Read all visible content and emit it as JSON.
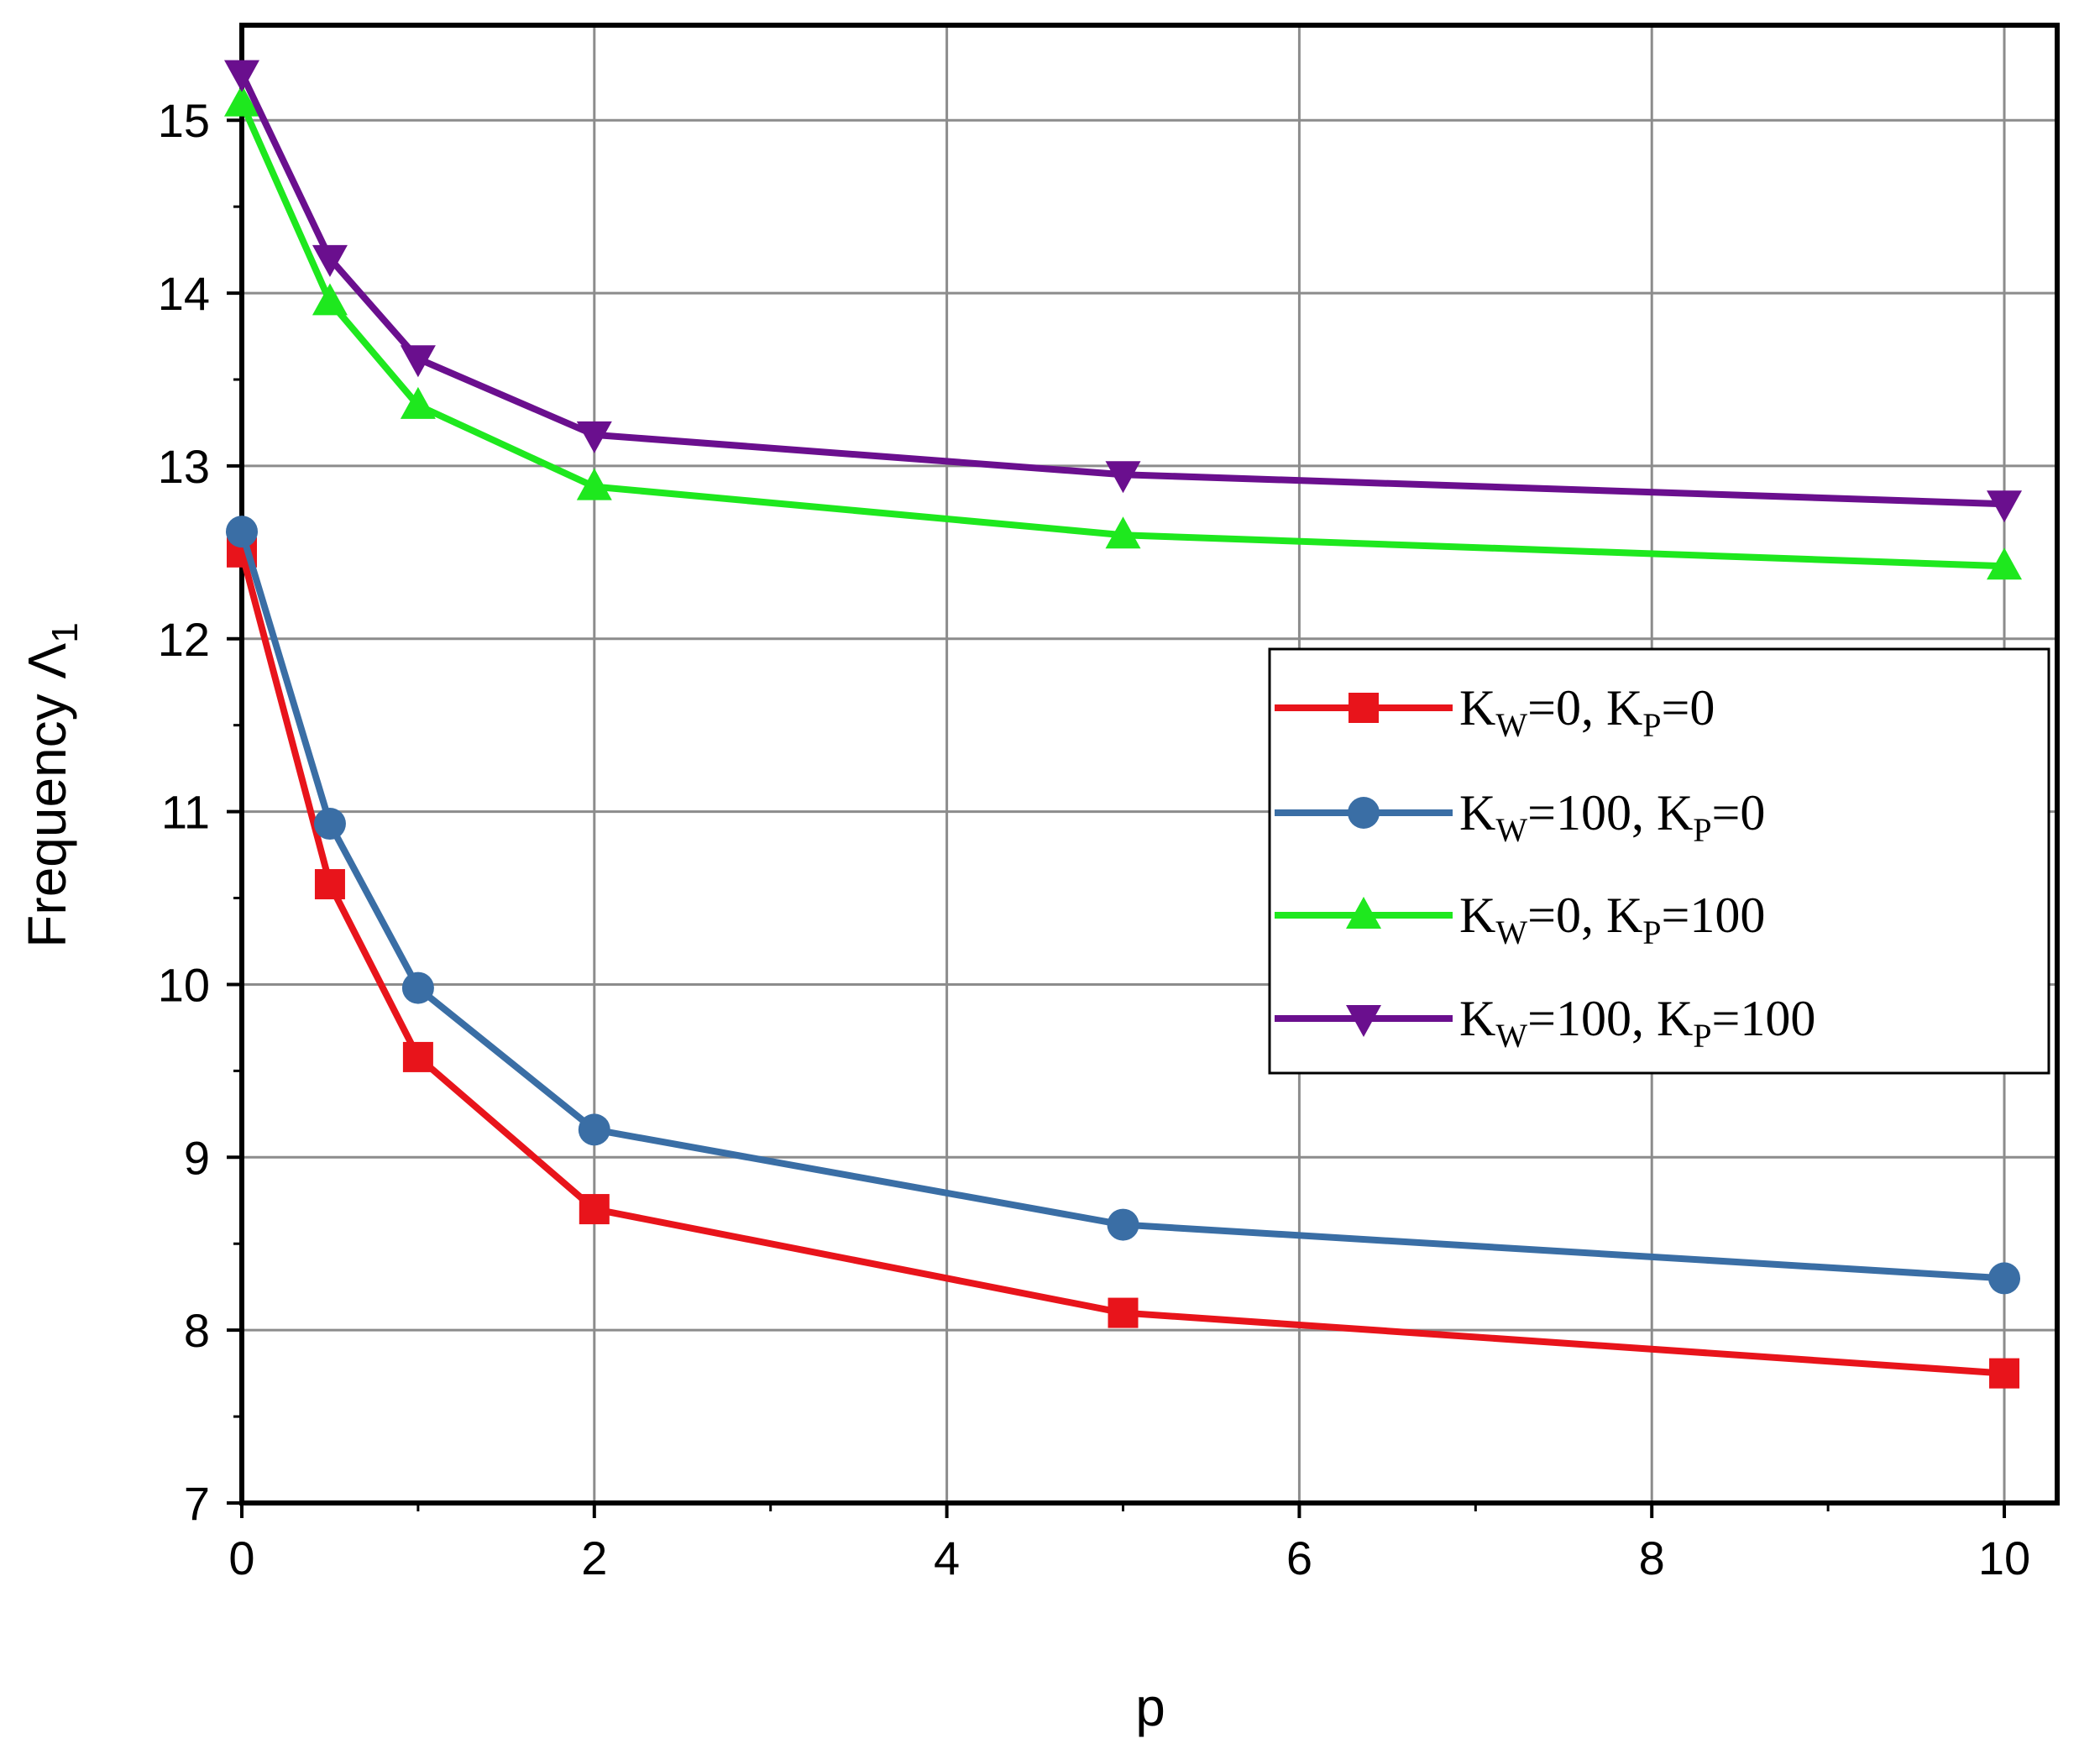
{
  "chart_data": {
    "type": "line",
    "title": "",
    "xlabel": "p",
    "ylabel": "Frequency Λ",
    "ylabel_subscript": "1",
    "x": [
      0,
      0.5,
      1,
      2,
      5,
      10
    ],
    "xlim": [
      0,
      10.3
    ],
    "ylim": [
      7,
      15.55
    ],
    "xticks": [
      0,
      2,
      4,
      6,
      8,
      10
    ],
    "yticks": [
      7,
      8,
      9,
      10,
      11,
      12,
      13,
      14,
      15
    ],
    "grid": true,
    "legend_position": "right",
    "series": [
      {
        "name": "KW=0, KP=0",
        "color": "#e8141b",
        "marker": "square",
        "values": [
          12.5,
          10.58,
          9.58,
          8.7,
          8.1,
          7.75
        ],
        "legend": {
          "a": "K",
          "a_sub": "W",
          "b": "=0, K",
          "b_sub": "P",
          "c": "=0"
        }
      },
      {
        "name": "KW=100, KP=0",
        "color": "#3a6ea5",
        "marker": "circle",
        "values": [
          12.62,
          10.93,
          9.98,
          9.16,
          8.61,
          8.3
        ],
        "legend": {
          "a": "K",
          "a_sub": "W",
          "b": "=100, K",
          "b_sub": "P",
          "c": "=0"
        }
      },
      {
        "name": "KW=0, KP=100",
        "color": "#1ee81e",
        "marker": "triangle-up",
        "values": [
          15.1,
          13.95,
          13.35,
          12.88,
          12.6,
          12.42
        ],
        "legend": {
          "a": "K",
          "a_sub": "W",
          "b": "=0, K",
          "b_sub": "P",
          "c": "=100"
        }
      },
      {
        "name": "KW=100, KP=100",
        "color": "#6a0f8e",
        "marker": "triangle-down",
        "values": [
          15.27,
          14.2,
          13.62,
          13.18,
          12.95,
          12.78
        ],
        "legend": {
          "a": "K",
          "a_sub": "W",
          "b": "=100, K",
          "b_sub": "P",
          "c": "=100"
        }
      }
    ]
  }
}
